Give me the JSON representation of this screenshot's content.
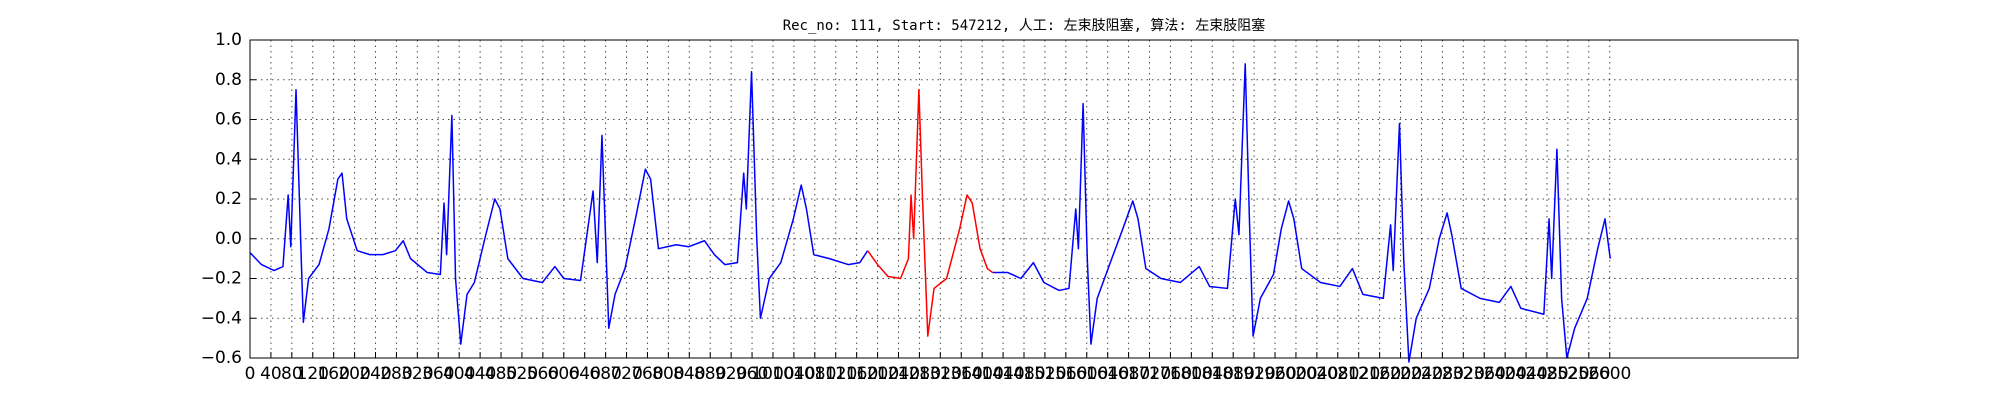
{
  "chart_data": {
    "type": "line",
    "title": "Rec_no: 111, Start: 547212, 人工: 左束肢阻塞, 算法: 左束肢阻塞",
    "grid": true,
    "xlim": [
      0,
      2960
    ],
    "ylim": [
      -0.6,
      1.0
    ],
    "xticks": [
      0,
      40,
      80,
      120,
      160,
      200,
      240,
      280,
      320,
      360,
      400,
      440,
      480,
      520,
      560,
      600,
      640,
      680,
      720,
      760,
      800,
      840,
      880,
      920,
      960,
      1000,
      1040,
      1080,
      1120,
      1160,
      1200,
      1240,
      1280,
      1320,
      1360,
      1400,
      1440,
      1480,
      1520,
      1560,
      1600,
      1640,
      1680,
      1720,
      1760,
      1800,
      1840,
      1880,
      1920,
      1960,
      2000,
      2040,
      2080,
      2120,
      2160,
      2200,
      2240,
      2280,
      2320,
      2360,
      2400,
      2440,
      2480,
      2520,
      2560,
      2600
    ],
    "yticks": [
      {
        "value": -0.6,
        "label": "−0.6"
      },
      {
        "value": -0.4,
        "label": "−0.4"
      },
      {
        "value": -0.2,
        "label": "−0.2"
      },
      {
        "value": 0,
        "label": "0.0"
      },
      {
        "value": 0.2,
        "label": "0.2"
      },
      {
        "value": 0.4,
        "label": "0.4"
      },
      {
        "value": 0.6,
        "label": "0.6"
      },
      {
        "value": 0.8,
        "label": "0.8"
      },
      {
        "value": 1.0,
        "label": "1.0"
      }
    ],
    "series": [
      {
        "color": "#0000ff",
        "x": [
          0,
          22,
          46,
          63,
          73,
          78,
          88,
          98,
          102,
          112,
          132,
          151,
          168,
          176,
          185,
          205,
          229,
          254,
          278,
          293,
          307,
          339,
          364,
          371,
          376,
          386,
          393,
          403,
          415,
          429,
          449,
          468,
          478,
          493,
          522,
          559,
          583,
          600,
          632,
          656,
          664,
          673,
          686,
          698,
          717,
          737,
          756,
          766,
          781,
          815,
          839,
          869,
          888,
          908,
          932,
          944,
          949,
          959,
          969,
          976,
          993,
          1015,
          1039,
          1054,
          1064,
          1078,
          1108,
          1144,
          1166,
          1181,
          null,
          1420,
          1449,
          1474,
          1498,
          1518,
          1547,
          1566,
          1579,
          1584,
          1593,
          1601,
          1608,
          1620,
          1645,
          1669,
          1688,
          1698,
          1713,
          1742,
          1779,
          1815,
          1835,
          1869,
          1884,
          1891,
          1903,
          1911,
          1918,
          1932,
          1957,
          1972,
          1986,
          1996,
          2011,
          2047,
          2084,
          2108,
          2128,
          2167,
          2181,
          2186,
          2198,
          2206,
          2216,
          2230,
          2255,
          2274,
          2289,
          2298,
          2316,
          2352,
          2389,
          2411,
          2430,
          2474,
          2484,
          2489,
          2499,
          2508,
          2518,
          2533,
          2557,
          2577,
          2591,
          2601
        ],
        "values": [
          -0.07,
          -0.13,
          -0.16,
          -0.14,
          0.22,
          -0.04,
          0.75,
          -0.1,
          -0.42,
          -0.2,
          -0.13,
          0.05,
          0.3,
          0.33,
          0.1,
          -0.06,
          -0.08,
          -0.08,
          -0.06,
          -0.01,
          -0.1,
          -0.17,
          -0.18,
          0.18,
          -0.08,
          0.62,
          -0.2,
          -0.53,
          -0.28,
          -0.22,
          0.0,
          0.2,
          0.15,
          -0.1,
          -0.2,
          -0.22,
          -0.14,
          -0.2,
          -0.21,
          0.24,
          -0.12,
          0.52,
          -0.45,
          -0.28,
          -0.15,
          0.1,
          0.35,
          0.3,
          -0.05,
          -0.03,
          -0.04,
          -0.01,
          -0.08,
          -0.13,
          -0.12,
          0.33,
          0.15,
          0.84,
          0.0,
          -0.4,
          -0.2,
          -0.12,
          0.1,
          0.27,
          0.15,
          -0.08,
          -0.1,
          -0.13,
          -0.12,
          -0.06,
          null,
          -0.17,
          -0.17,
          -0.2,
          -0.12,
          -0.22,
          -0.26,
          -0.25,
          0.15,
          -0.05,
          0.68,
          -0.1,
          -0.53,
          -0.3,
          -0.12,
          0.05,
          0.19,
          0.1,
          -0.15,
          -0.2,
          -0.22,
          -0.14,
          -0.24,
          -0.25,
          0.2,
          0.02,
          0.88,
          0.1,
          -0.49,
          -0.3,
          -0.18,
          0.05,
          0.19,
          0.1,
          -0.15,
          -0.22,
          -0.24,
          -0.15,
          -0.28,
          -0.3,
          0.07,
          -0.16,
          0.58,
          -0.1,
          -0.62,
          -0.4,
          -0.25,
          0.0,
          0.13,
          0.02,
          -0.25,
          -0.3,
          -0.32,
          -0.24,
          -0.35,
          -0.38,
          0.1,
          -0.2,
          0.45,
          -0.3,
          -0.6,
          -0.45,
          -0.3,
          -0.05,
          0.1,
          -0.1
        ]
      },
      {
        "color": "#ff0000",
        "x": [
          1181,
          1200,
          1220,
          1244,
          1259,
          1264,
          1269,
          1279,
          1286,
          1296,
          1308,
          1332,
          1357,
          1371,
          1381,
          1396,
          1410,
          1420
        ],
        "values": [
          -0.06,
          -0.13,
          -0.19,
          -0.2,
          -0.1,
          0.22,
          0.0,
          0.75,
          0.2,
          -0.49,
          -0.25,
          -0.2,
          0.05,
          0.22,
          0.18,
          -0.05,
          -0.15,
          -0.17
        ]
      }
    ]
  }
}
